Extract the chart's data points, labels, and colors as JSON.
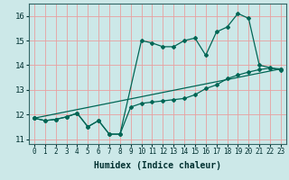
{
  "xlabel": "Humidex (Indice chaleur)",
  "bg_color": "#cce8e8",
  "grid_color": "#e8a0a0",
  "line_color": "#006655",
  "xlim": [
    -0.5,
    23.5
  ],
  "ylim": [
    10.8,
    16.5
  ],
  "yticks": [
    11,
    12,
    13,
    14,
    15,
    16
  ],
  "xticks": [
    0,
    1,
    2,
    3,
    4,
    5,
    6,
    7,
    8,
    9,
    10,
    11,
    12,
    13,
    14,
    15,
    16,
    17,
    18,
    19,
    20,
    21,
    22,
    23
  ],
  "line1_x": [
    0,
    1,
    2,
    3,
    4,
    5,
    6,
    7,
    8,
    9,
    10,
    11,
    12,
    13,
    14,
    15,
    16,
    17,
    18,
    19,
    20,
    21,
    22,
    23
  ],
  "line1_y": [
    11.85,
    11.75,
    11.8,
    11.9,
    12.05,
    11.5,
    11.75,
    11.2,
    11.2,
    12.3,
    12.45,
    12.5,
    12.55,
    12.6,
    12.65,
    12.8,
    13.05,
    13.2,
    13.45,
    13.6,
    13.72,
    13.82,
    13.88,
    13.85
  ],
  "line2_x": [
    0,
    1,
    2,
    3,
    4,
    5,
    6,
    7,
    8,
    10,
    11,
    12,
    13,
    14,
    15,
    16,
    17,
    18,
    19,
    20,
    21,
    22,
    23
  ],
  "line2_y": [
    11.85,
    11.75,
    11.8,
    11.9,
    12.05,
    11.5,
    11.75,
    11.2,
    11.2,
    15.0,
    14.9,
    14.75,
    14.75,
    15.0,
    15.1,
    14.4,
    15.35,
    15.55,
    16.1,
    15.9,
    14.0,
    13.9,
    13.8
  ],
  "line3_x": [
    0,
    23
  ],
  "line3_y": [
    11.85,
    13.85
  ],
  "xlabel_fontsize": 7,
  "tick_fontsize": 5.5,
  "ytick_fontsize": 6.5
}
